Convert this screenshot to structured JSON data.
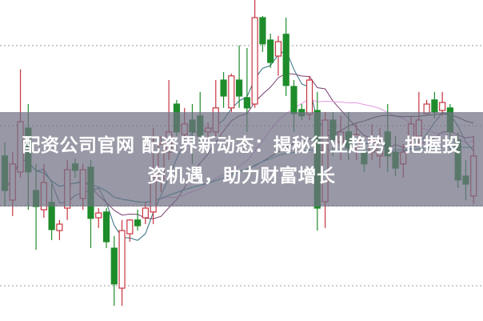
{
  "title": "配资公司官网 配资界新动态：揭秘行业趋势，把握投资机遇，助力财富增长",
  "chart_data": {
    "type": "candlestick",
    "title": "",
    "xlabel": "",
    "ylabel": "",
    "ylim": [
      0,
      100
    ],
    "grid": true,
    "grid_style": "dotted horizontal",
    "colors": {
      "up": "#c8333f",
      "down": "#1e8c2a",
      "ma5": "#2f6e7e",
      "ma10": "#7a3f70",
      "ma20": "#e39be0",
      "ma30": "#3d3d3d",
      "ma60": "#2a9a9a",
      "grid": "#9a9a9a",
      "banner": "#707084"
    },
    "moving_averages": [
      5,
      10,
      20,
      30,
      60
    ],
    "ohlc": [
      [
        51.3,
        55.5,
        35.5,
        40.5
      ],
      [
        37.5,
        52.5,
        32.5,
        48.8
      ],
      [
        46.3,
        78.3,
        44.5,
        62
      ],
      [
        60,
        67.5,
        34.5,
        46.3
      ],
      [
        40.5,
        48.8,
        22,
        35.5
      ],
      [
        34.5,
        48.8,
        32,
        43
      ],
      [
        36.8,
        42.5,
        25,
        28.3
      ],
      [
        28,
        31.3,
        25,
        30
      ],
      [
        35,
        50,
        31.3,
        47
      ],
      [
        48.8,
        50.5,
        44.5,
        46.8
      ],
      [
        38,
        48.8,
        34.5,
        47
      ],
      [
        47.8,
        50,
        22.5,
        31.8
      ],
      [
        32,
        35,
        28.8,
        33.5
      ],
      [
        33.8,
        35,
        22.5,
        24.5
      ],
      [
        22.5,
        26.3,
        4.5,
        11.3
      ],
      [
        10,
        31.3,
        4.5,
        28
      ],
      [
        27,
        31.5,
        24.5,
        31.3
      ],
      [
        31.3,
        34.5,
        28,
        29.5
      ],
      [
        32,
        36.8,
        30,
        35
      ],
      [
        33.8,
        60,
        30,
        44.5
      ],
      [
        43.8,
        57.5,
        40,
        55
      ],
      [
        52.5,
        75,
        50,
        58.8
      ],
      [
        67.5,
        68.8,
        57.5,
        58.8
      ],
      [
        58,
        66.3,
        56.3,
        61.3
      ],
      [
        62.5,
        67.5,
        48.8,
        58.8
      ],
      [
        63.8,
        71.3,
        55,
        57.5
      ],
      [
        58.8,
        61.8,
        55,
        60
      ],
      [
        58.8,
        75,
        57.5,
        66.3
      ],
      [
        75,
        77.5,
        66.3,
        70
      ],
      [
        66.3,
        77,
        65,
        76.3
      ],
      [
        75,
        85.8,
        66.3,
        70
      ],
      [
        69.5,
        85,
        58.8,
        66.3
      ],
      [
        67.5,
        100,
        66.3,
        94.5
      ],
      [
        94.5,
        95,
        83.8,
        86.3
      ],
      [
        87.5,
        89.5,
        78.8,
        80.5
      ],
      [
        82.5,
        88.8,
        76.3,
        87
      ],
      [
        89.3,
        94.5,
        70,
        73.3
      ],
      [
        73,
        75,
        58.8,
        64.5
      ],
      [
        65.8,
        67.5,
        62.5,
        63.8
      ],
      [
        64.3,
        76.3,
        62.5,
        75
      ],
      [
        65.5,
        71.3,
        28,
        35
      ],
      [
        37,
        65,
        28.8,
        62.5
      ],
      [
        62.5,
        65,
        51.3,
        56.3
      ],
      [
        55.5,
        63.8,
        50,
        58.8
      ],
      [
        58.8,
        65,
        50,
        53.8
      ],
      [
        53.8,
        61.3,
        50,
        58
      ],
      [
        52.5,
        55,
        46.3,
        48.8
      ],
      [
        52.5,
        61.3,
        50,
        56.3
      ],
      [
        51.3,
        60,
        47.5,
        55.5
      ],
      [
        58.8,
        67.5,
        46.3,
        51.3
      ],
      [
        52.5,
        57.5,
        45,
        47.5
      ],
      [
        48.8,
        55,
        44.5,
        52.5
      ],
      [
        56.3,
        63.8,
        55,
        61.3
      ],
      [
        57.5,
        71.3,
        55,
        62.5
      ],
      [
        64.5,
        68.8,
        64.3,
        67.5
      ],
      [
        68.8,
        71.3,
        63,
        65
      ],
      [
        65.5,
        71.3,
        63.8,
        68
      ],
      [
        66.3,
        67.5,
        52.5,
        58.8
      ],
      [
        56.3,
        58.8,
        41.3,
        43.8
      ],
      [
        45,
        50,
        37.5,
        42.5
      ],
      [
        38.8,
        57.5,
        36.3,
        51.3
      ]
    ]
  }
}
